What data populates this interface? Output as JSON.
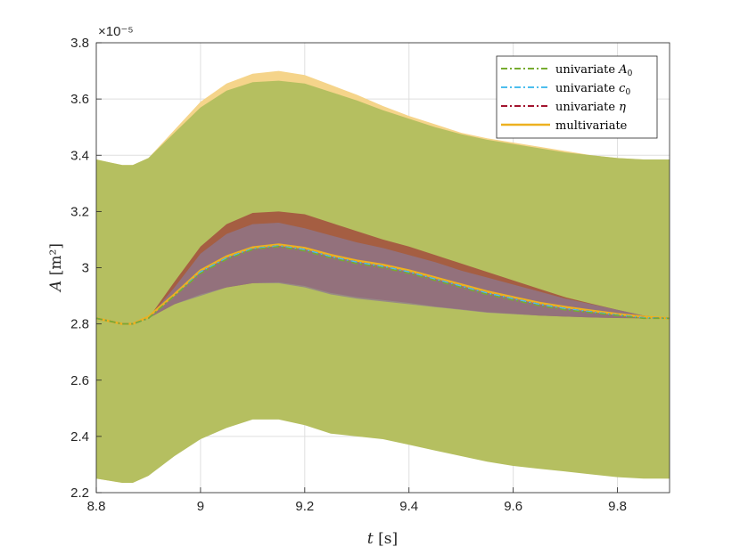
{
  "chart_data": {
    "type": "area",
    "title": "",
    "xlabel": "t [s]",
    "ylabel": "A [m²]",
    "xlim": [
      8.8,
      9.9
    ],
    "ylim": [
      2.2,
      3.8
    ],
    "y_exponent_label": "×10⁻⁵",
    "xticks": [
      8.8,
      9.0,
      9.2,
      9.4,
      9.6,
      9.8
    ],
    "xtick_labels": [
      "8.8",
      "9",
      "9.2",
      "9.4",
      "9.6",
      "9.8"
    ],
    "yticks": [
      2.2,
      2.4,
      2.6,
      2.8,
      3.0,
      3.2,
      3.4,
      3.6,
      3.8
    ],
    "ytick_labels": [
      "2.2",
      "2.4",
      "2.6",
      "2.8",
      "3",
      "3.2",
      "3.4",
      "3.6",
      "3.8"
    ],
    "grid": true,
    "legend_position": "top-right",
    "x": [
      8.8,
      8.85,
      8.87,
      8.9,
      8.95,
      9.0,
      9.05,
      9.1,
      9.15,
      9.2,
      9.25,
      9.3,
      9.35,
      9.4,
      9.45,
      9.5,
      9.55,
      9.6,
      9.65,
      9.7,
      9.75,
      9.8,
      9.85,
      9.9
    ],
    "series": [
      {
        "name": "univariate A0",
        "legend_label": "univariate",
        "legend_math": "A",
        "legend_sub": "0",
        "color": "#77ac30",
        "line_style": "dashdot",
        "mean": [
          2.82,
          2.8,
          2.8,
          2.82,
          2.9,
          2.98,
          3.03,
          3.065,
          3.075,
          3.06,
          3.035,
          3.015,
          3.0,
          2.98,
          2.955,
          2.93,
          2.905,
          2.885,
          2.865,
          2.85,
          2.84,
          2.83,
          2.82,
          2.82
        ],
        "band_lower": [
          2.25,
          2.235,
          2.235,
          2.26,
          2.33,
          2.39,
          2.43,
          2.46,
          2.46,
          2.44,
          2.41,
          2.4,
          2.39,
          2.37,
          2.35,
          2.33,
          2.31,
          2.295,
          2.285,
          2.275,
          2.265,
          2.255,
          2.25,
          2.25
        ],
        "band_upper": [
          3.385,
          3.365,
          3.365,
          3.39,
          3.48,
          3.57,
          3.63,
          3.66,
          3.665,
          3.655,
          3.625,
          3.595,
          3.56,
          3.53,
          3.5,
          3.475,
          3.455,
          3.44,
          3.425,
          3.41,
          3.4,
          3.39,
          3.385,
          3.385
        ]
      },
      {
        "name": "univariate c0",
        "legend_label": "univariate",
        "legend_math": "c",
        "legend_sub": "0",
        "color": "#4dbeee",
        "line_style": "dashdot",
        "mean": [
          2.82,
          2.8,
          2.8,
          2.82,
          2.9,
          2.985,
          3.035,
          3.068,
          3.078,
          3.065,
          3.04,
          3.02,
          3.005,
          2.985,
          2.96,
          2.935,
          2.91,
          2.89,
          2.87,
          2.855,
          2.843,
          2.832,
          2.822,
          2.82
        ],
        "band_lower": [
          2.82,
          2.8,
          2.8,
          2.82,
          2.87,
          2.9,
          2.93,
          2.945,
          2.945,
          2.93,
          2.905,
          2.89,
          2.88,
          2.87,
          2.86,
          2.85,
          2.84,
          2.835,
          2.83,
          2.826,
          2.823,
          2.821,
          2.82,
          2.82
        ],
        "band_upper": [
          2.82,
          2.8,
          2.8,
          2.82,
          2.93,
          3.05,
          3.12,
          3.155,
          3.16,
          3.14,
          3.115,
          3.09,
          3.07,
          3.045,
          3.02,
          2.99,
          2.965,
          2.94,
          2.915,
          2.89,
          2.87,
          2.85,
          2.83,
          2.82
        ]
      },
      {
        "name": "univariate η",
        "legend_label": "univariate",
        "legend_math": "η",
        "legend_sub": "",
        "color": "#a2142f",
        "line_style": "dashdot",
        "mean": [
          2.82,
          2.8,
          2.8,
          2.82,
          2.9,
          2.985,
          3.035,
          3.068,
          3.078,
          3.065,
          3.04,
          3.02,
          3.005,
          2.985,
          2.96,
          2.935,
          2.91,
          2.89,
          2.87,
          2.855,
          2.843,
          2.832,
          2.822,
          2.82
        ],
        "band_lower": [
          2.82,
          2.8,
          2.8,
          2.82,
          2.87,
          2.905,
          2.93,
          2.945,
          2.948,
          2.935,
          2.91,
          2.895,
          2.885,
          2.875,
          2.862,
          2.852,
          2.842,
          2.836,
          2.83,
          2.826,
          2.823,
          2.821,
          2.82,
          2.82
        ],
        "band_upper": [
          2.82,
          2.8,
          2.8,
          2.82,
          2.95,
          3.075,
          3.155,
          3.195,
          3.2,
          3.19,
          3.16,
          3.13,
          3.1,
          3.075,
          3.045,
          3.015,
          2.985,
          2.955,
          2.925,
          2.895,
          2.872,
          2.85,
          2.83,
          2.82
        ]
      },
      {
        "name": "multivariate",
        "legend_label": "multivariate",
        "legend_math": "",
        "legend_sub": "",
        "color": "#edb120",
        "line_style": "solid",
        "mean": [
          2.82,
          2.8,
          2.8,
          2.825,
          2.905,
          2.99,
          3.04,
          3.072,
          3.082,
          3.07,
          3.045,
          3.025,
          3.01,
          2.99,
          2.965,
          2.94,
          2.915,
          2.895,
          2.875,
          2.86,
          2.847,
          2.835,
          2.825,
          2.82
        ],
        "band_lower": [
          2.25,
          2.235,
          2.235,
          2.26,
          2.34,
          2.4,
          2.44,
          2.47,
          2.47,
          2.45,
          2.42,
          2.405,
          2.395,
          2.375,
          2.355,
          2.335,
          2.315,
          2.3,
          2.288,
          2.278,
          2.268,
          2.258,
          2.252,
          2.25
        ],
        "band_upper": [
          3.385,
          3.365,
          3.365,
          3.39,
          3.49,
          3.59,
          3.655,
          3.69,
          3.7,
          3.685,
          3.65,
          3.615,
          3.575,
          3.54,
          3.51,
          3.48,
          3.46,
          3.445,
          3.43,
          3.415,
          3.4,
          3.39,
          3.385,
          3.385
        ]
      }
    ]
  }
}
